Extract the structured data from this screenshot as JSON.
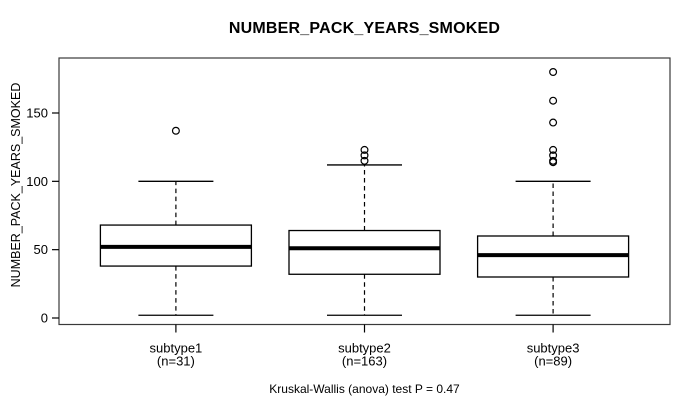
{
  "chart_data": {
    "type": "boxplot",
    "title": "NUMBER_PACK_YEARS_SMOKED",
    "ylabel": "NUMBER_PACK_YEARS_SMOKED",
    "xlabel": "",
    "footnote": "Kruskal-Wallis (anova) test P = 0.47",
    "yticks": [
      0,
      50,
      100,
      150
    ],
    "ytick_labels": [
      "0",
      "50",
      "100",
      "150"
    ],
    "ylim": [
      -5,
      190
    ],
    "grid": false,
    "legend": "none",
    "groups": [
      {
        "label": "subtype1",
        "n_label": "(n=31)",
        "whisker_low": 2,
        "q1": 38,
        "median": 52,
        "q3": 68,
        "whisker_high": 100,
        "outliers": [
          137
        ]
      },
      {
        "label": "subtype2",
        "n_label": "(n=163)",
        "whisker_low": 2,
        "q1": 32,
        "median": 51,
        "q3": 64,
        "whisker_high": 112,
        "outliers": [
          115,
          119,
          123
        ]
      },
      {
        "label": "subtype3",
        "n_label": "(n=89)",
        "whisker_low": 2,
        "q1": 30,
        "median": 46,
        "q3": 60,
        "whisker_high": 100,
        "outliers": [
          114,
          115,
          119,
          123,
          143,
          159,
          180
        ]
      }
    ],
    "colors": {
      "stroke": "#000000",
      "frame": "#3a3a3a",
      "box_fill": "#ffffff",
      "background": "#ffffff"
    }
  }
}
